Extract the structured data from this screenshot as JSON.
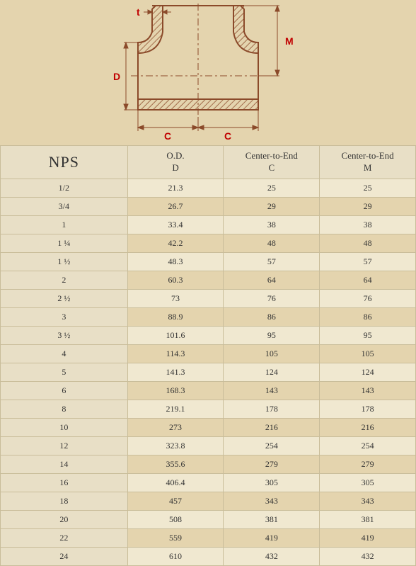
{
  "diagram": {
    "labels": {
      "t": "t",
      "D": "D",
      "M": "M",
      "C": "C"
    },
    "stroke_color": "#8b4a2a",
    "label_color": "#c00000",
    "hatch_color": "#8b4a2a",
    "bg_color": "#e4d4ae"
  },
  "table": {
    "columns": [
      {
        "line1": "NPS",
        "line2": ""
      },
      {
        "line1": "O.D.",
        "line2": "D"
      },
      {
        "line1": "Center-to-End",
        "line2": "C"
      },
      {
        "line1": "Center-to-End",
        "line2": "M"
      }
    ],
    "rows": [
      [
        "1/2",
        "21.3",
        "25",
        "25"
      ],
      [
        "3/4",
        "26.7",
        "29",
        "29"
      ],
      [
        "1",
        "33.4",
        "38",
        "38"
      ],
      [
        "1 ¼",
        "42.2",
        "48",
        "48"
      ],
      [
        "1 ½",
        "48.3",
        "57",
        "57"
      ],
      [
        "2",
        "60.3",
        "64",
        "64"
      ],
      [
        "2 ½",
        "73",
        "76",
        "76"
      ],
      [
        "3",
        "88.9",
        "86",
        "86"
      ],
      [
        "3 ½",
        "101.6",
        "95",
        "95"
      ],
      [
        "4",
        "114.3",
        "105",
        "105"
      ],
      [
        "5",
        "141.3",
        "124",
        "124"
      ],
      [
        "6",
        "168.3",
        "143",
        "143"
      ],
      [
        "8",
        "219.1",
        "178",
        "178"
      ],
      [
        "10",
        "273",
        "216",
        "216"
      ],
      [
        "12",
        "323.8",
        "254",
        "254"
      ],
      [
        "14",
        "355.6",
        "279",
        "279"
      ],
      [
        "16",
        "406.4",
        "305",
        "305"
      ],
      [
        "18",
        "457",
        "343",
        "343"
      ],
      [
        "20",
        "508",
        "381",
        "381"
      ],
      [
        "22",
        "559",
        "419",
        "419"
      ],
      [
        "24",
        "610",
        "432",
        "432"
      ]
    ]
  }
}
